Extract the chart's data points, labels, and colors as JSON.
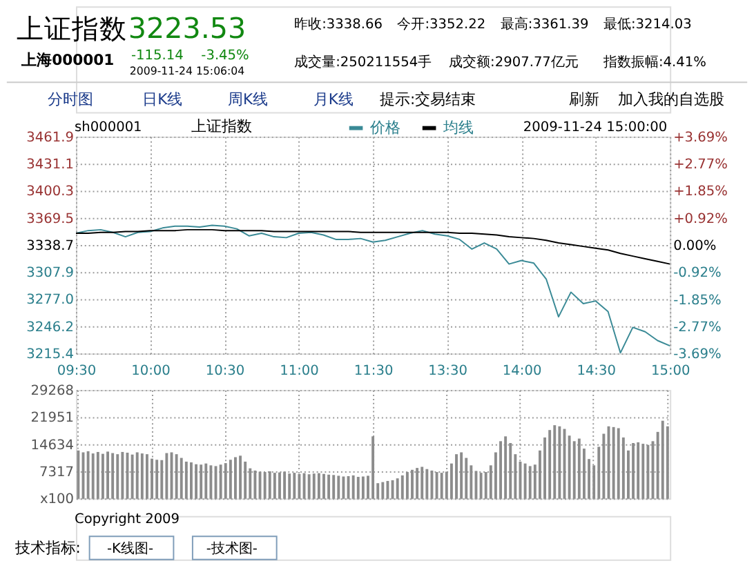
{
  "chart_data": [
    {
      "type": "other",
      "annotations": [
        "上证指数",
        "3223.53",
        "上海000001",
        "-115.14",
        "-3.45%",
        "2009-11-24 15:06:04",
        "昨收:3338.66",
        "今开:3352.22",
        "最高:3361.39",
        "最低:3214.03",
        "成交量:250211554手",
        "成交额:2907.77亿元",
        "指数振幅:4.41%",
        "分时图",
        "日K线",
        "周K线",
        "月K线",
        "提示:交易结束",
        "刷新",
        "加入我的自选股"
      ]
    },
    {
      "type": "line",
      "title": "上证指数",
      "annotations": [
        "sh000001",
        "2009-11-24 15:00:00"
      ],
      "legend": "top",
      "grid": true,
      "categories": [
        "09:30",
        null,
        null,
        null,
        null,
        null,
        "10:00",
        null,
        null,
        null,
        null,
        null,
        "10:30",
        null,
        null,
        null,
        null,
        null,
        "11:00",
        null,
        null,
        null,
        null,
        null,
        "11:30",
        null,
        null,
        null,
        null,
        null,
        "13:30",
        null,
        null,
        null,
        null,
        null,
        "14:00",
        null,
        null,
        null,
        null,
        null,
        "14:30",
        null,
        null,
        null,
        null,
        null,
        "15:00"
      ],
      "ylim": [
        3215.4,
        3461.9
      ],
      "yticks": [
        3215.4,
        3246.2,
        {
          "value": 3277,
          "label": "3277.0"
        },
        3307.9,
        3338.7,
        3369.5,
        3400.3,
        3431.1,
        3461.9
      ],
      "y2lim": [
        -3.69,
        3.69
      ],
      "y2ticks": [
        {
          "value": -3.69,
          "label": "-3.69%"
        },
        {
          "value": -2.77,
          "label": "-2.77%"
        },
        {
          "value": -1.85,
          "label": "-1.85%"
        },
        {
          "value": -0.92,
          "label": "-0.92%"
        },
        {
          "value": 0,
          "label": "0.00%"
        },
        {
          "value": 0.92,
          "label": "+0.92%"
        },
        {
          "value": 1.85,
          "label": "+1.85%"
        },
        {
          "value": 2.77,
          "label": "+2.77%"
        },
        {
          "value": 3.69,
          "label": "+3.69%"
        }
      ],
      "series": [
        {
          "name": "价格",
          "color": "#3a8a96",
          "values": [
            3352,
            3355,
            3356,
            3353,
            3348,
            3353,
            3354,
            3358,
            3360,
            3360,
            3359,
            3361,
            3360,
            3357,
            3349,
            3352,
            3348,
            3347,
            3352,
            3353,
            3350,
            3345,
            3345,
            3346,
            3342,
            3344,
            3348,
            3352,
            3355,
            3351,
            3349,
            3345,
            3334,
            3341,
            3334,
            3317,
            3321,
            3318,
            3300,
            3257,
            3285,
            3272,
            3275,
            3263,
            3216,
            3245,
            3240,
            3230,
            3224
          ]
        },
        {
          "name": "均线",
          "color": "#000000",
          "values": [
            3352,
            3352,
            3353,
            3353,
            3354,
            3354,
            3355,
            3355,
            3355,
            3356,
            3356,
            3356,
            3355,
            3355,
            3355,
            3355,
            3354,
            3354,
            3354,
            3354,
            3354,
            3354,
            3354,
            3353,
            3353,
            3353,
            3353,
            3353,
            3353,
            3353,
            3353,
            3352,
            3352,
            3351,
            3350,
            3348,
            3347,
            3346,
            3344,
            3341,
            3339,
            3337,
            3335,
            3333,
            3329,
            3326,
            3323,
            3320,
            3317
          ]
        }
      ]
    },
    {
      "type": "bar",
      "grid": true,
      "color": "#8c8c8c",
      "categories": [
        null,
        null,
        null,
        null,
        null,
        null,
        null,
        null,
        null,
        null,
        null,
        null,
        null,
        null,
        null,
        null,
        null,
        null,
        null,
        null,
        null,
        null,
        null,
        null,
        null,
        null,
        null,
        null,
        null,
        null,
        null,
        null,
        null,
        null,
        null,
        null,
        null,
        null,
        null,
        null,
        null,
        null,
        null,
        null,
        null,
        null,
        null,
        null,
        null,
        null,
        null,
        null,
        null,
        null,
        null,
        null,
        null,
        null,
        null,
        null,
        null,
        null,
        null,
        null,
        null,
        null,
        null,
        null,
        null,
        null,
        null,
        null,
        null,
        null,
        null,
        null,
        null,
        null,
        null,
        null,
        null,
        null,
        null,
        null,
        null,
        null,
        null,
        null,
        null,
        null,
        null,
        null,
        null,
        null,
        null,
        null,
        null,
        null,
        null,
        null,
        null,
        null,
        null,
        null,
        null,
        null,
        null,
        null,
        null,
        null,
        null,
        null,
        null,
        null,
        null,
        null,
        null,
        null,
        null,
        null,
        null
      ],
      "ylim": [
        100,
        29268
      ],
      "yticks": [
        {
          "value": 100,
          "label": "x100"
        },
        7317,
        14634,
        21951,
        29268
      ],
      "values": [
        13000,
        12500,
        12800,
        12200,
        12600,
        12100,
        12700,
        12300,
        12000,
        12600,
        12400,
        11900,
        12500,
        12200,
        12000,
        10800,
        10500,
        10400,
        12300,
        12500,
        12000,
        11000,
        10000,
        9800,
        9300,
        9200,
        9500,
        9000,
        8800,
        9200,
        9600,
        10500,
        11200,
        11600,
        10000,
        8200,
        7600,
        7300,
        7200,
        7400,
        7000,
        7100,
        7300,
        6800,
        7000,
        6700,
        6900,
        6600,
        6800,
        6900,
        6700,
        6500,
        6400,
        6200,
        6000,
        6100,
        6300,
        5900,
        6000,
        6200,
        16800,
        4200,
        4500,
        4800,
        5000,
        5500,
        6300,
        7200,
        7800,
        8300,
        8600,
        8000,
        7600,
        7200,
        7000,
        7300,
        9500,
        12000,
        12500,
        11000,
        9000,
        7500,
        7000,
        7200,
        9000,
        12500,
        15500,
        16800,
        15000,
        12000,
        10000,
        9500,
        8800,
        9200,
        13000,
        16500,
        18500,
        19800,
        19500,
        18800,
        17000,
        15500,
        16200,
        13500,
        10700,
        9000,
        14000,
        17500,
        19500,
        19300,
        19000,
        16500,
        13000,
        15000,
        15200,
        14800,
        14500,
        15500,
        18000,
        21000,
        19500
      ]
    },
    {
      "type": "other",
      "annotations": [
        "Copyright 2009",
        "技术指标:",
        "-K线图-",
        "-技术图-"
      ]
    }
  ]
}
